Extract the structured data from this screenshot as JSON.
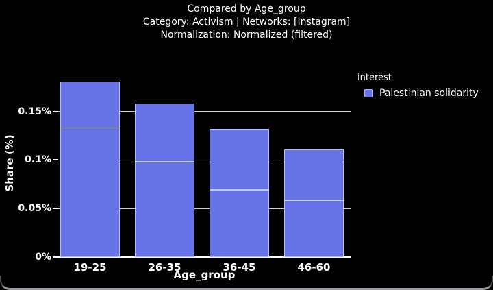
{
  "title": {
    "line1": "Compared by Age_group",
    "line2": "Category: Activism | Networks: [Instagram]",
    "line3": "Normalization: Normalized (filtered)"
  },
  "legend": {
    "title": "interest",
    "items": [
      {
        "label": "Palestinian solidarity",
        "color": "#6674e8"
      }
    ]
  },
  "colors": {
    "background": "#000000",
    "bar": "#6674e8",
    "bar_outline": "rgba(244,246,255,0.55)",
    "segment_divider": "rgba(248,250,255,0.65)",
    "gridline": "#cfcfcf",
    "axis_line": "#ffffff",
    "text": "#ffffff",
    "window_edge": "#97999c"
  },
  "chart_data": {
    "type": "bar",
    "stacked": true,
    "title": "Compared by Age_group",
    "subtitle": "Category: Activism | Networks: [Instagram]",
    "normalization": "Normalization: Normalized (filtered)",
    "xlabel": "Age_group",
    "ylabel": "Share (%)",
    "categories": [
      "19-25",
      "26-35",
      "36-45",
      "46-60"
    ],
    "series": [
      {
        "name": "Palestinian solidarity",
        "totals": [
          0.181,
          0.158,
          0.132,
          0.111
        ],
        "segments": [
          [
            0.132,
            0.049
          ],
          [
            0.097,
            0.061
          ],
          [
            0.068,
            0.064
          ],
          [
            0.057,
            0.054
          ]
        ]
      }
    ],
    "unit": "%",
    "ylim": [
      0,
      0.2
    ],
    "yticks": {
      "values": [
        0,
        0.05,
        0.1,
        0.15
      ],
      "labels": [
        "0%",
        "0.05%",
        "0.1%",
        "0.15%"
      ]
    },
    "grid": true,
    "legend_title": "interest",
    "legend_position": "top-right",
    "bar_color": "#6674e8"
  }
}
